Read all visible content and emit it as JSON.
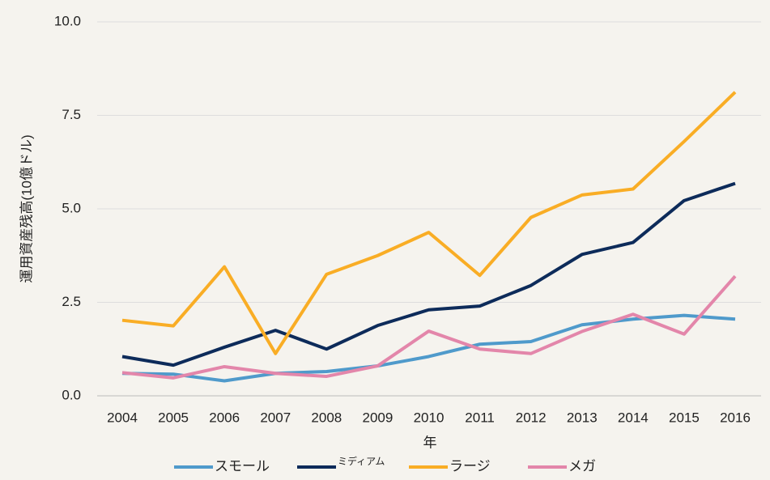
{
  "chart_data": {
    "type": "line",
    "x_label": "年",
    "y_label": "運用資産残高(10億ドル)",
    "categories": [
      "2004",
      "2005",
      "2006",
      "2007",
      "2008",
      "2009",
      "2010",
      "2011",
      "2012",
      "2013",
      "2014",
      "2015",
      "2016"
    ],
    "series": [
      {
        "name": "スモール",
        "color": "#4f9acb",
        "values": [
          0.6,
          0.58,
          0.4,
          0.6,
          0.65,
          0.8,
          1.05,
          1.38,
          1.45,
          1.9,
          2.05,
          2.15,
          2.05
        ]
      },
      {
        "name": "ミディアム",
        "color": "#0d2b5a",
        "values": [
          1.05,
          0.82,
          1.3,
          1.75,
          1.25,
          1.88,
          2.3,
          2.4,
          2.95,
          3.78,
          4.1,
          5.22,
          5.68
        ]
      },
      {
        "name": "ラージ",
        "color": "#f9ad25",
        "values": [
          2.02,
          1.87,
          3.45,
          1.13,
          3.25,
          3.75,
          4.37,
          3.22,
          4.77,
          5.37,
          5.53,
          6.8,
          8.12
        ]
      },
      {
        "name": "メガ",
        "color": "#e386aa",
        "values": [
          0.62,
          0.48,
          0.78,
          0.6,
          0.52,
          0.8,
          1.73,
          1.25,
          1.13,
          1.72,
          2.18,
          1.65,
          3.2
        ]
      }
    ],
    "ylim": [
      0,
      10
    ],
    "yticks": [
      {
        "value": 0,
        "label": "0.0"
      },
      2.5,
      {
        "value": 5,
        "label": "5.0"
      },
      7.5,
      {
        "value": 10,
        "label": "10.0"
      }
    ],
    "grid": true,
    "legend": "bottom"
  }
}
